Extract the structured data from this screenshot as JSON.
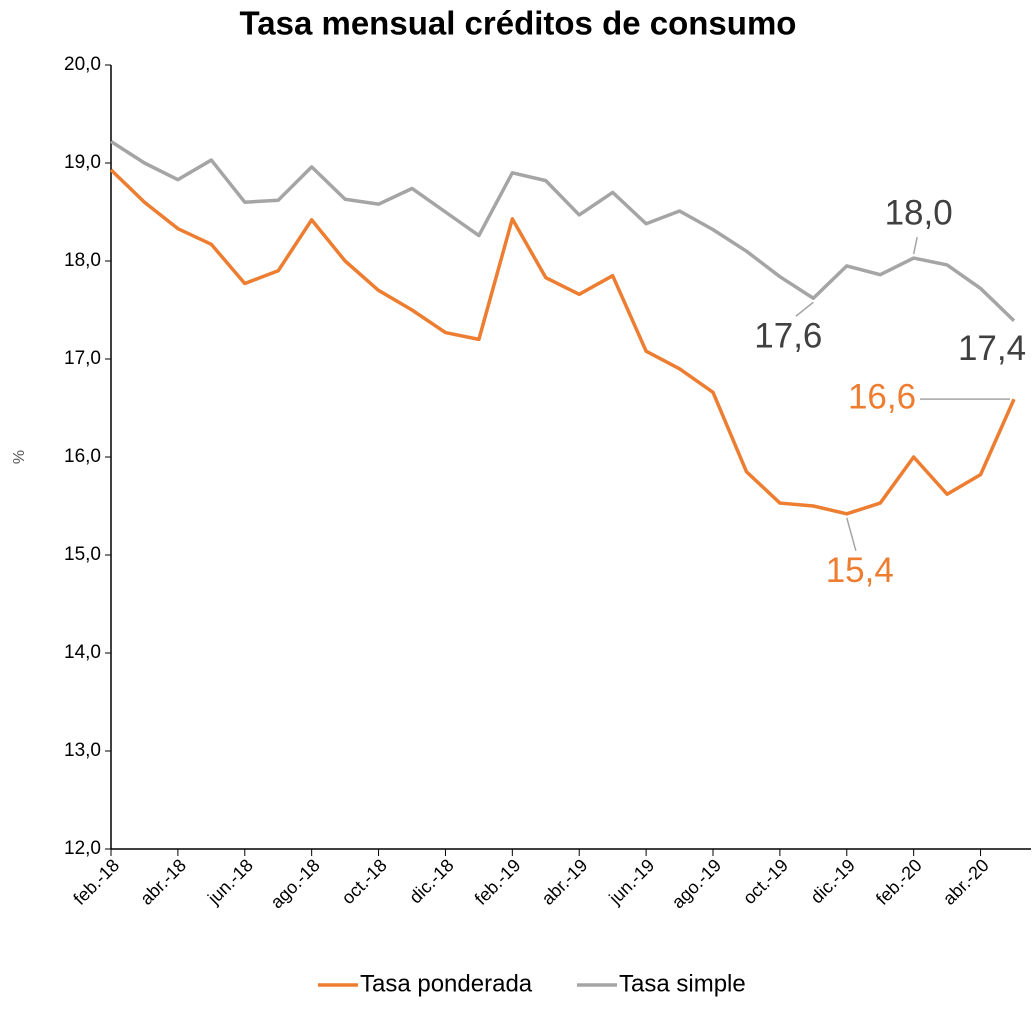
{
  "chart_data": {
    "type": "line",
    "title": "Tasa mensual créditos de consumo",
    "y_label": "%",
    "categories": [
      "feb.-18",
      null,
      "abr.-18",
      null,
      "jun.-18",
      null,
      "ago.-18",
      null,
      "oct.-18",
      null,
      "dic.-18",
      null,
      "feb.-19",
      null,
      "abr.-19",
      null,
      "jun.-19",
      null,
      "ago.-19",
      null,
      "oct.-19",
      null,
      "dic.-19",
      null,
      "feb.-20",
      null,
      "abr.-20",
      null
    ],
    "series": [
      {
        "name": "Tasa ponderada",
        "color": "#ed7d31",
        "values": [
          18.93,
          18.6,
          18.33,
          18.17,
          17.77,
          17.9,
          18.42,
          18.0,
          17.7,
          17.5,
          17.27,
          17.2,
          18.43,
          17.83,
          17.66,
          17.85,
          17.08,
          16.9,
          16.66,
          15.85,
          15.53,
          15.5,
          15.42,
          15.53,
          16.0,
          15.62,
          15.82,
          16.59
        ],
        "value_labels": [
          null,
          null,
          null,
          null,
          null,
          null,
          null,
          null,
          null,
          null,
          null,
          null,
          null,
          null,
          null,
          null,
          null,
          null,
          null,
          null,
          null,
          null,
          "15,4",
          null,
          null,
          null,
          null,
          "16,6"
        ]
      },
      {
        "name": "Tasa simple",
        "color": "#a5a5a5",
        "values": [
          19.22,
          19.0,
          18.83,
          19.03,
          18.6,
          18.62,
          18.96,
          18.63,
          18.58,
          18.74,
          18.5,
          18.26,
          18.9,
          18.82,
          18.47,
          18.7,
          18.38,
          18.51,
          18.32,
          18.1,
          17.84,
          17.62,
          17.95,
          17.86,
          18.03,
          17.96,
          17.72,
          17.39
        ],
        "value_labels": [
          null,
          null,
          null,
          null,
          null,
          null,
          null,
          null,
          null,
          null,
          null,
          null,
          null,
          null,
          null,
          null,
          null,
          null,
          null,
          null,
          null,
          "17,6",
          null,
          null,
          "18,0",
          null,
          null,
          "17,4"
        ]
      }
    ],
    "ylim": [
      12,
      20
    ],
    "yticks": [
      {
        "value": 12,
        "label": "12,0"
      },
      {
        "value": 13,
        "label": "13,0"
      },
      {
        "value": 14,
        "label": "14,0"
      },
      {
        "value": 15,
        "label": "15,0"
      },
      {
        "value": 16,
        "label": "16,0"
      },
      {
        "value": 17,
        "label": "17,0"
      },
      {
        "value": 18,
        "label": "18,0"
      },
      {
        "value": 19,
        "label": "19,0"
      },
      {
        "value": 20,
        "label": "20,0"
      }
    ],
    "legend": "bottom"
  }
}
